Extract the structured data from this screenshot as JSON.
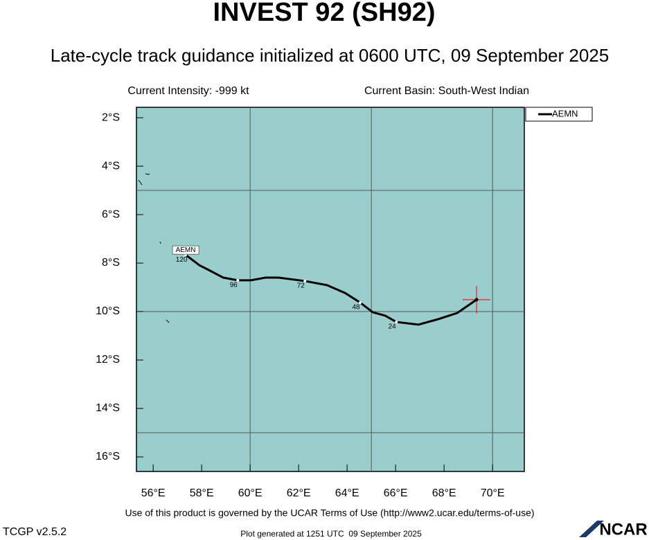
{
  "chart_data": {
    "type": "line",
    "title": "INVEST 92 (SH92)",
    "subtitle": "Late-cycle track guidance initialized at 0600 UTC, 09 September 2025",
    "intensity_text": "Current Intensity: -999 kt",
    "basin_text": "Current Basin: South-West Indian",
    "xlim": [
      55.31,
      71.31
    ],
    "ylim": [
      -16.6,
      -1.57
    ],
    "xticks": [
      {
        "value": 56,
        "label": "56°E"
      },
      {
        "value": 58,
        "label": "58°E"
      },
      {
        "value": 60,
        "label": "60°E"
      },
      {
        "value": 62,
        "label": "62°E"
      },
      {
        "value": 64,
        "label": "64°E"
      },
      {
        "value": 66,
        "label": "66°E"
      },
      {
        "value": 68,
        "label": "68°E"
      },
      {
        "value": 70,
        "label": "70°E"
      }
    ],
    "yticks": [
      {
        "value": -2,
        "label": "2°S"
      },
      {
        "value": -4,
        "label": "4°S"
      },
      {
        "value": -6,
        "label": "6°S"
      },
      {
        "value": -8,
        "label": "8°S"
      },
      {
        "value": -10,
        "label": "10°S"
      },
      {
        "value": -12,
        "label": "12°S"
      },
      {
        "value": -14,
        "label": "14°S"
      },
      {
        "value": -16,
        "label": "16°S"
      }
    ],
    "grid_x": [
      60,
      65,
      70
    ],
    "grid_y": [
      -5,
      -10,
      -15
    ],
    "legend": "top-right",
    "series": [
      {
        "name": "AEMN",
        "color": "#000000",
        "x": [
          69.34,
          68.54,
          67.77,
          66.94,
          66.03,
          65.57,
          65.06,
          64.54,
          63.91,
          63.17,
          62.26,
          61.17,
          60.63,
          60.03,
          59.49,
          58.89,
          58.34,
          57.91,
          57.34
        ],
        "values": [
          -9.51,
          -10.06,
          -10.31,
          -10.54,
          -10.43,
          -10.17,
          -10.03,
          -9.63,
          -9.23,
          -8.91,
          -8.74,
          -8.6,
          -8.6,
          -8.71,
          -8.71,
          -8.6,
          -8.31,
          -8.09,
          -7.66
        ],
        "point_labels": [
          null,
          null,
          null,
          null,
          "24",
          null,
          null,
          "48",
          null,
          null,
          "72",
          null,
          null,
          null,
          "96",
          null,
          null,
          null,
          "120"
        ]
      }
    ],
    "footer": "Use of this product is governed by the UCAR Terms of Use (http://www2.ucar.edu/terms-of-use)",
    "version": "TCGP v2.5.2",
    "generated": "Plot generated at 1251 UTC  09 September 2025",
    "logo": "NCAR"
  }
}
